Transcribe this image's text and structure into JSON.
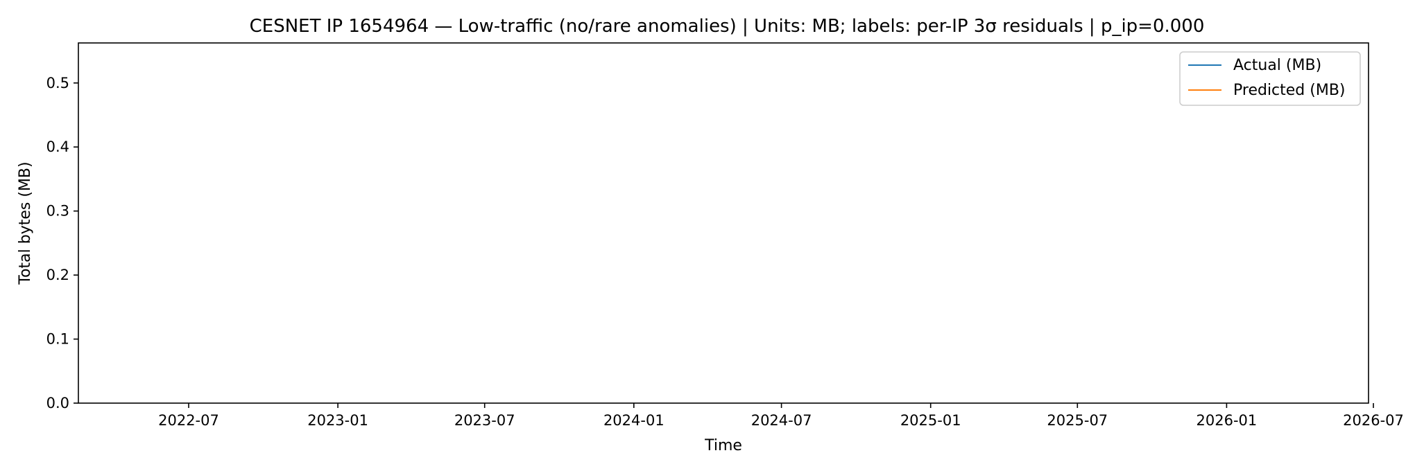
{
  "chart_data": {
    "type": "line",
    "title": "CESNET IP 1654964 — Low-traffic (no/rare anomalies) | Units: MB; labels: per-IP 3σ residuals | p_ip=0.000",
    "xlabel": "Time",
    "ylabel": "Total bytes (MB)",
    "xlim": [
      "2022-02-15",
      "2026-06-25"
    ],
    "ylim": [
      0,
      0.5625
    ],
    "x_ticks": [
      "2022-07-01",
      "2023-01-01",
      "2023-07-01",
      "2024-01-01",
      "2024-07-01",
      "2025-01-01",
      "2025-07-01",
      "2026-01-01",
      "2026-07-01"
    ],
    "x_tick_labels": [
      "2022-07",
      "2023-01",
      "2023-07",
      "2024-01",
      "2024-07",
      "2025-01",
      "2025-07",
      "2026-01",
      "2026-07"
    ],
    "y_ticks": [
      0.0,
      0.1,
      0.2,
      0.3,
      0.4,
      0.5
    ],
    "y_tick_labels": [
      "0.0",
      "0.1",
      "0.2",
      "0.3",
      "0.4",
      "0.5"
    ],
    "grid": false,
    "legend_position": "upper right",
    "series": [
      {
        "name": "Actual (MB)",
        "color": "#1f77b4",
        "points": []
      },
      {
        "name": "Predicted (MB)",
        "color": "#ff7f0e",
        "points": []
      }
    ]
  }
}
